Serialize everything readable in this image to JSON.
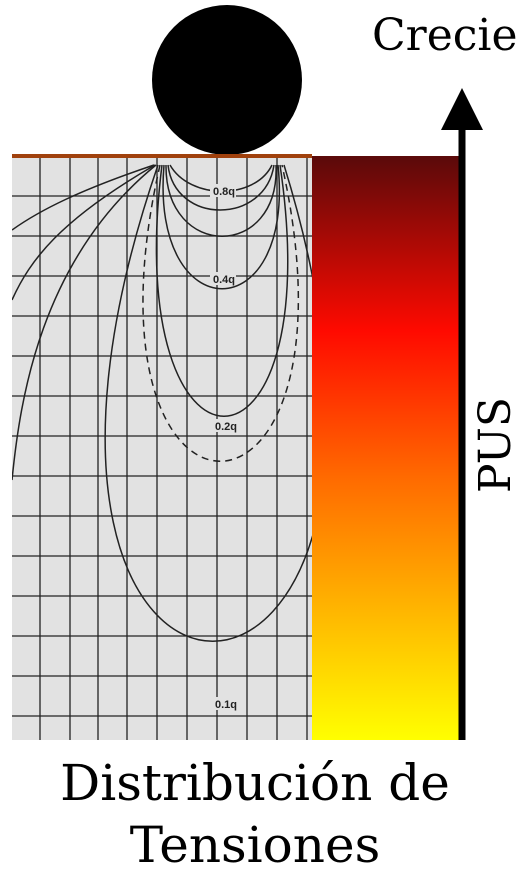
{
  "header": {
    "title": "Crecie"
  },
  "contours": [
    {
      "label": "0.8q"
    },
    {
      "label": "0.4q"
    },
    {
      "label": "0.2q"
    },
    {
      "label": "0.1q"
    }
  ],
  "axis": {
    "label": "PUS"
  },
  "caption": {
    "lines": [
      "Distribución de",
      "Tensiones"
    ]
  }
}
